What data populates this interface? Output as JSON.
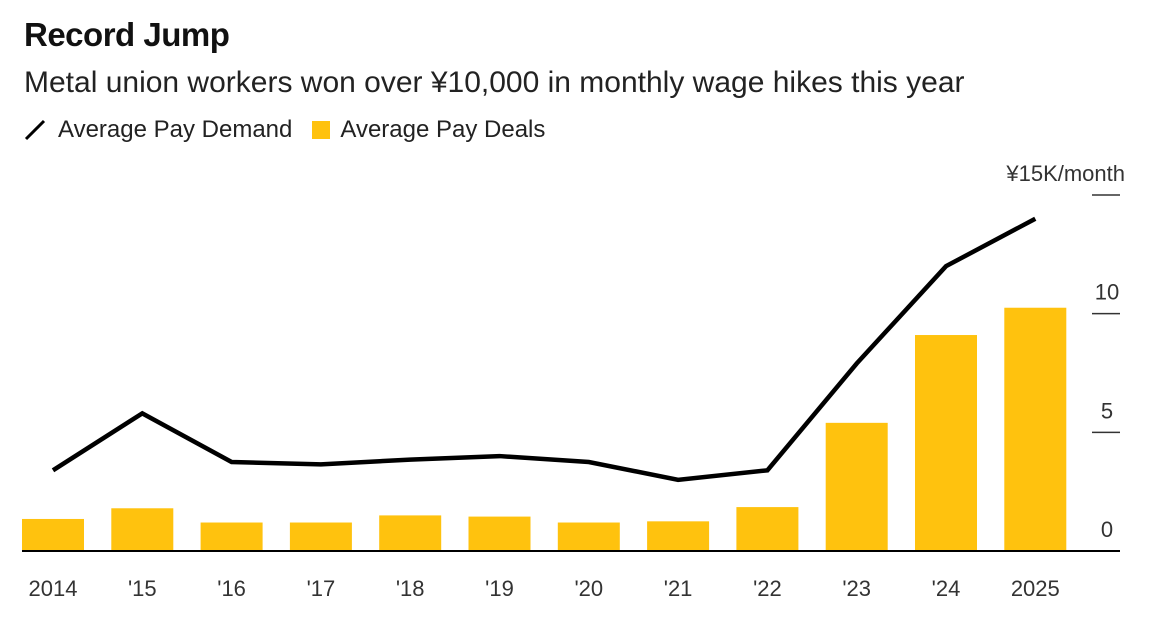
{
  "chart_data": {
    "type": "bar",
    "title": "Record Jump",
    "subtitle": "Metal union workers won over ¥10,000 in monthly wage hikes this year",
    "categories": [
      "2014",
      "'15",
      "'16",
      "'17",
      "'18",
      "'19",
      "'20",
      "'21",
      "'22",
      "'23",
      "'24",
      "2025"
    ],
    "series": [
      {
        "name": "Average Pay Deals",
        "kind": "bar",
        "color": "#ffc20e",
        "values": [
          1.35,
          1.8,
          1.2,
          1.2,
          1.5,
          1.45,
          1.2,
          1.25,
          1.85,
          5.4,
          9.1,
          10.25
        ]
      },
      {
        "name": "Average Pay Demand",
        "kind": "line",
        "color": "#000000",
        "values": [
          3.4,
          5.8,
          3.75,
          3.65,
          3.85,
          4.0,
          3.75,
          3.0,
          3.4,
          7.9,
          12.0,
          14.0
        ]
      }
    ],
    "ylim": [
      0,
      15
    ],
    "yticks": [
      "0",
      "5",
      "10",
      "¥15K/month"
    ],
    "ytick_values": [
      0,
      5,
      10,
      15
    ],
    "yaxis_side": "right",
    "grid": false,
    "legend_position": "top-left"
  }
}
